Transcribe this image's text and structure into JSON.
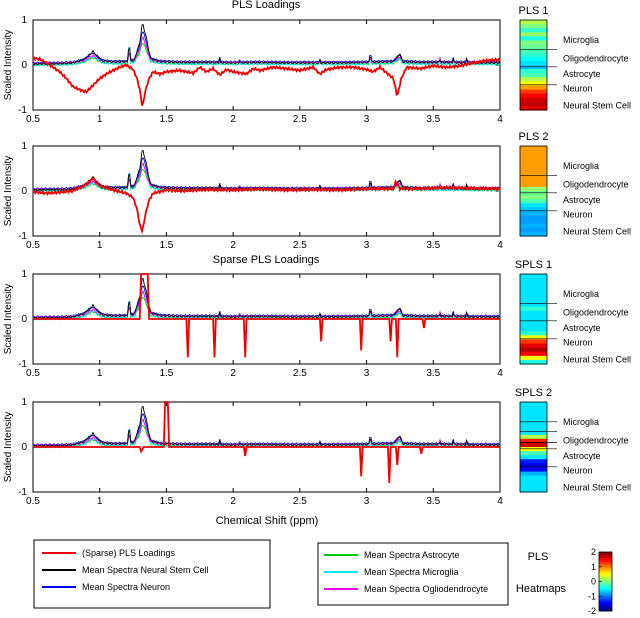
{
  "figure": {
    "title_pls": "PLS Loadings",
    "title_spls": "Sparse PLS Loadings",
    "xlabel": "Chemical Shift (ppm)",
    "ylabel": "Scaled Intensity"
  },
  "chart_data": {
    "type": "line",
    "x_ticks": [
      "0.5",
      "1",
      "1.5",
      "2",
      "2.5",
      "3",
      "3.5",
      "4"
    ],
    "y_ticks": [
      "1",
      "0",
      "-1"
    ],
    "xlim": [
      0.5,
      4
    ],
    "ylim": [
      -1,
      1
    ],
    "x_reversed": false,
    "grid": false,
    "mean_spectra": {
      "base": [
        [
          0.5,
          0.02
        ],
        [
          0.6,
          0.03
        ],
        [
          0.7,
          0.03
        ],
        [
          0.8,
          0.05
        ],
        [
          0.88,
          0.12
        ],
        [
          0.92,
          0.22
        ],
        [
          0.95,
          0.3
        ],
        [
          0.98,
          0.2
        ],
        [
          1.02,
          0.1
        ],
        [
          1.1,
          0.07
        ],
        [
          1.2,
          0.08
        ],
        [
          1.26,
          0.12
        ],
        [
          1.3,
          0.5
        ],
        [
          1.32,
          0.95
        ],
        [
          1.35,
          0.6
        ],
        [
          1.38,
          0.15
        ],
        [
          1.45,
          0.08
        ],
        [
          1.6,
          0.06
        ],
        [
          1.8,
          0.06
        ],
        [
          2.0,
          0.05
        ],
        [
          2.2,
          0.06
        ],
        [
          2.4,
          0.05
        ],
        [
          2.6,
          0.05
        ],
        [
          2.8,
          0.05
        ],
        [
          3.0,
          0.06
        ],
        [
          3.2,
          0.08
        ],
        [
          3.25,
          0.25
        ],
        [
          3.27,
          0.08
        ],
        [
          3.4,
          0.06
        ],
        [
          3.6,
          0.06
        ],
        [
          3.8,
          0.05
        ],
        [
          4.0,
          0.05
        ]
      ],
      "peaks": [
        [
          1.22,
          0.35
        ],
        [
          1.9,
          0.1
        ],
        [
          2.05,
          0.08
        ],
        [
          2.65,
          0.08
        ],
        [
          3.03,
          0.12
        ],
        [
          3.55,
          0.1
        ],
        [
          3.65,
          0.12
        ],
        [
          3.75,
          0.08
        ]
      ]
    },
    "panels": [
      {
        "label": "PLS 1",
        "loadings": [
          [
            0.5,
            0.15
          ],
          [
            0.55,
            0.13
          ],
          [
            0.6,
            0.05
          ],
          [
            0.65,
            -0.05
          ],
          [
            0.7,
            -0.15
          ],
          [
            0.75,
            -0.3
          ],
          [
            0.8,
            -0.48
          ],
          [
            0.85,
            -0.55
          ],
          [
            0.9,
            -0.6
          ],
          [
            0.95,
            -0.45
          ],
          [
            1.0,
            -0.3
          ],
          [
            1.05,
            -0.2
          ],
          [
            1.1,
            -0.12
          ],
          [
            1.15,
            -0.05
          ],
          [
            1.2,
            0.0
          ],
          [
            1.25,
            -0.1
          ],
          [
            1.28,
            -0.3
          ],
          [
            1.3,
            -0.55
          ],
          [
            1.32,
            -0.95
          ],
          [
            1.34,
            -0.6
          ],
          [
            1.37,
            -0.3
          ],
          [
            1.4,
            -0.15
          ],
          [
            1.45,
            -0.2
          ],
          [
            1.5,
            -0.15
          ],
          [
            1.6,
            -0.12
          ],
          [
            1.7,
            -0.18
          ],
          [
            1.75,
            -0.05
          ],
          [
            1.8,
            -0.15
          ],
          [
            1.85,
            -0.08
          ],
          [
            1.9,
            -0.22
          ],
          [
            1.95,
            -0.1
          ],
          [
            2.0,
            -0.15
          ],
          [
            2.1,
            -0.2
          ],
          [
            2.15,
            -0.08
          ],
          [
            2.2,
            -0.12
          ],
          [
            2.3,
            -0.05
          ],
          [
            2.4,
            -0.08
          ],
          [
            2.5,
            -0.12
          ],
          [
            2.6,
            -0.05
          ],
          [
            2.65,
            -0.2
          ],
          [
            2.7,
            -0.1
          ],
          [
            2.8,
            -0.05
          ],
          [
            2.9,
            -0.05
          ],
          [
            3.0,
            -0.1
          ],
          [
            3.05,
            -0.15
          ],
          [
            3.1,
            -0.05
          ],
          [
            3.2,
            -0.3
          ],
          [
            3.23,
            -0.7
          ],
          [
            3.26,
            -0.3
          ],
          [
            3.3,
            -0.05
          ],
          [
            3.4,
            -0.08
          ],
          [
            3.5,
            -0.02
          ],
          [
            3.6,
            -0.05
          ],
          [
            3.7,
            -0.02
          ],
          [
            3.8,
            0.05
          ],
          [
            3.9,
            0.1
          ],
          [
            4.0,
            0.12
          ]
        ],
        "heatmap": [
          0.55,
          0.5,
          0.42,
          0.52,
          0.4,
          0.5,
          0.48,
          0.45,
          0.42,
          0.38,
          0.35,
          0.32,
          0.42,
          0.45,
          0.55,
          0.62,
          0.72,
          0.82,
          0.88,
          0.92,
          0.94,
          0.9
        ],
        "heatmap_dividers": [
          0.33,
          0.52,
          0.72
        ]
      },
      {
        "label": "PLS 2",
        "loadings": [
          [
            0.5,
            -0.02
          ],
          [
            0.6,
            -0.05
          ],
          [
            0.7,
            -0.03
          ],
          [
            0.8,
            0.0
          ],
          [
            0.9,
            0.15
          ],
          [
            0.95,
            0.28
          ],
          [
            1.0,
            0.12
          ],
          [
            1.1,
            0.02
          ],
          [
            1.2,
            -0.05
          ],
          [
            1.25,
            -0.15
          ],
          [
            1.28,
            -0.4
          ],
          [
            1.3,
            -0.75
          ],
          [
            1.32,
            -0.9
          ],
          [
            1.34,
            -0.55
          ],
          [
            1.37,
            -0.2
          ],
          [
            1.4,
            -0.05
          ],
          [
            1.5,
            0.02
          ],
          [
            1.6,
            0.0
          ],
          [
            1.8,
            0.03
          ],
          [
            2.0,
            0.02
          ],
          [
            2.2,
            0.04
          ],
          [
            2.4,
            0.02
          ],
          [
            2.6,
            0.03
          ],
          [
            2.8,
            0.02
          ],
          [
            3.0,
            0.05
          ],
          [
            3.2,
            0.05
          ],
          [
            3.22,
            0.22
          ],
          [
            3.25,
            0.05
          ],
          [
            3.4,
            0.05
          ],
          [
            3.6,
            0.08
          ],
          [
            3.8,
            0.06
          ],
          [
            4.0,
            0.05
          ]
        ],
        "heatmap": [
          0.72,
          0.72,
          0.72,
          0.72,
          0.72,
          0.72,
          0.72,
          0.72,
          0.72,
          0.72,
          0.52,
          0.48,
          0.5,
          0.45,
          0.35,
          0.32,
          0.3,
          0.28,
          0.28,
          0.3,
          0.28,
          0.3
        ],
        "heatmap_dividers": [
          0.33,
          0.52,
          0.72
        ]
      },
      {
        "label": "SPLS 1",
        "loadings": [
          [
            0.5,
            0.0
          ],
          [
            1.3,
            0.0
          ],
          [
            1.31,
            1.0
          ],
          [
            1.36,
            1.0
          ],
          [
            1.37,
            0.0
          ],
          [
            1.65,
            0.0
          ],
          [
            1.66,
            -0.85
          ],
          [
            1.67,
            0.0
          ],
          [
            1.85,
            0.0
          ],
          [
            1.86,
            -0.85
          ],
          [
            1.87,
            0.0
          ],
          [
            2.08,
            0.0
          ],
          [
            2.09,
            -0.85
          ],
          [
            2.1,
            0.0
          ],
          [
            2.65,
            0.0
          ],
          [
            2.66,
            -0.5
          ],
          [
            2.67,
            0.0
          ],
          [
            2.95,
            0.0
          ],
          [
            2.96,
            -0.7
          ],
          [
            2.97,
            0.0
          ],
          [
            3.17,
            0.0
          ],
          [
            3.18,
            -0.5
          ],
          [
            3.19,
            0.0
          ],
          [
            3.22,
            0.0
          ],
          [
            3.23,
            -0.85
          ],
          [
            3.24,
            0.0
          ],
          [
            3.42,
            0.0
          ],
          [
            3.43,
            -0.2
          ],
          [
            3.44,
            0.0
          ],
          [
            4.0,
            0.0
          ]
        ],
        "heatmap": [
          0.35,
          0.35,
          0.35,
          0.35,
          0.35,
          0.35,
          0.35,
          0.35,
          0.42,
          0.35,
          0.35,
          0.35,
          0.35,
          0.35,
          0.42,
          0.62,
          0.82,
          0.9,
          0.95,
          0.88,
          0.62,
          0.4
        ],
        "heatmap_dividers": [
          0.33,
          0.52,
          0.72
        ]
      },
      {
        "label": "SPLS 2",
        "loadings": [
          [
            0.5,
            0.0
          ],
          [
            1.3,
            0.0
          ],
          [
            1.31,
            -0.1
          ],
          [
            1.33,
            0.0
          ],
          [
            1.48,
            0.0
          ],
          [
            1.49,
            1.0
          ],
          [
            1.51,
            1.0
          ],
          [
            1.52,
            0.0
          ],
          [
            2.08,
            0.0
          ],
          [
            2.09,
            -0.2
          ],
          [
            2.1,
            0.0
          ],
          [
            2.95,
            0.0
          ],
          [
            2.96,
            -0.65
          ],
          [
            2.97,
            0.0
          ],
          [
            3.16,
            0.0
          ],
          [
            3.17,
            -0.8
          ],
          [
            3.18,
            0.0
          ],
          [
            3.22,
            0.0
          ],
          [
            3.23,
            -0.4
          ],
          [
            3.24,
            0.0
          ],
          [
            3.4,
            0.0
          ],
          [
            3.41,
            -0.15
          ],
          [
            3.42,
            0.0
          ],
          [
            4.0,
            0.0
          ]
        ],
        "heatmap": [
          0.35,
          0.35,
          0.35,
          0.35,
          0.35,
          0.35,
          0.35,
          0.35,
          0.55,
          0.85,
          0.92,
          0.62,
          0.45,
          0.35,
          0.15,
          0.1,
          0.12,
          0.3,
          0.35,
          0.35,
          0.35,
          0.35
        ],
        "heatmap_dividers": [
          0.22,
          0.33,
          0.45,
          0.52,
          0.72
        ]
      }
    ],
    "row_labels": [
      "Microglia",
      "Oligodendrocyte",
      "Astrocyte",
      "Neuron",
      "Neural Stem Cell"
    ],
    "legend_left": [
      {
        "label": "(Sparse) PLS Loadings",
        "color": "#ee0000"
      },
      {
        "label": "Mean Spectra Neural Stem Cell",
        "color": "#000000"
      },
      {
        "label": "Mean Spectra Neuron",
        "color": "#0000ee"
      }
    ],
    "legend_right": [
      {
        "label": "Mean Spectra Astrocyte",
        "color": "#00cc00"
      },
      {
        "label": "Mean Spectra Microglia",
        "color": "#00e5ee"
      },
      {
        "label": "Mean Spectra Ogliodendrocyte",
        "color": "#ee00ee"
      }
    ],
    "colorbar": {
      "title1": "PLS",
      "title2": "Heatmaps",
      "ticks": [
        "2",
        "1",
        "0",
        "-1",
        "-2"
      ],
      "range": [
        -2,
        2
      ]
    }
  }
}
